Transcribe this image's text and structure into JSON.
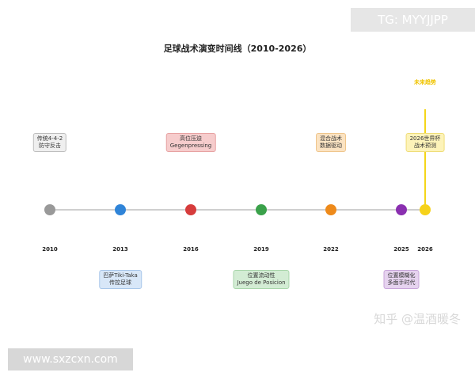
{
  "title": "足球战术演变时间线（2010-2026）",
  "future_label": "未来趋势",
  "events": [
    {
      "year": "2010",
      "color": "#999999",
      "label": "传统4-4-2\n防守反击",
      "position": "above",
      "box_bg": "#efefef",
      "box_border": "#bdbdbd"
    },
    {
      "year": "2013",
      "color": "#2f84d8",
      "label": "巴萨Tiki-Taka\n传控足球",
      "position": "below",
      "box_bg": "#d8e7f8",
      "box_border": "#a9c7ea"
    },
    {
      "year": "2016",
      "color": "#d63c3c",
      "label": "高位压迫\nGegenpressing",
      "position": "above",
      "box_bg": "#f6cccc",
      "box_border": "#e7a2a2"
    },
    {
      "year": "2019",
      "color": "#3aa14a",
      "label": "位置流动性\nJuego de Posicion",
      "position": "below",
      "box_bg": "#d3ecd4",
      "box_border": "#a9d6ab"
    },
    {
      "year": "2022",
      "color": "#ee8a1a",
      "label": "混合战术\n数据驱动",
      "position": "above",
      "box_bg": "#fbe3c2",
      "box_border": "#efc58c"
    },
    {
      "year": "2025",
      "color": "#8a2fb0",
      "label": "位置模糊化\n多面手时代",
      "position": "below",
      "box_bg": "#e6d3ef",
      "box_border": "#c8a6da"
    },
    {
      "year": "2026",
      "color": "#f6d21a",
      "label": "2026世界杯\n战术预测",
      "position": "above",
      "box_bg": "#fdf3b9",
      "box_border": "#efdd78"
    }
  ],
  "watermarks": {
    "tg": "TG: MYYJJPP",
    "zhihu": "知乎 @温酒暖冬",
    "site": "www.sxzcxn.com"
  }
}
